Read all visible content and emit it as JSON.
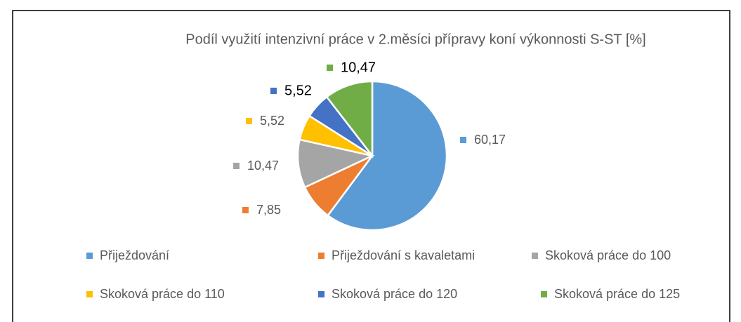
{
  "chart_data": {
    "type": "pie",
    "title": "Podíl využití intenzivní práce v 2.měsíci přípravy koní výkonnosti S-ST [%]",
    "categories": [
      "Přiježdování",
      "Přiježdování s kavaletami",
      "Skoková práce do 100",
      "Skoková práce do 110",
      "Skoková práce do 120",
      "Skoková práce do 125"
    ],
    "values": [
      60.17,
      7.85,
      10.47,
      5.52,
      5.52,
      10.47
    ],
    "value_labels": [
      "60,17",
      "7,85",
      "10,47",
      "5,52",
      "5,52",
      "10,47"
    ],
    "colors": [
      "#5b9bd5",
      "#ed7d31",
      "#a5a5a5",
      "#ffc000",
      "#4472c4",
      "#70ad47"
    ],
    "legend": "bottom"
  }
}
